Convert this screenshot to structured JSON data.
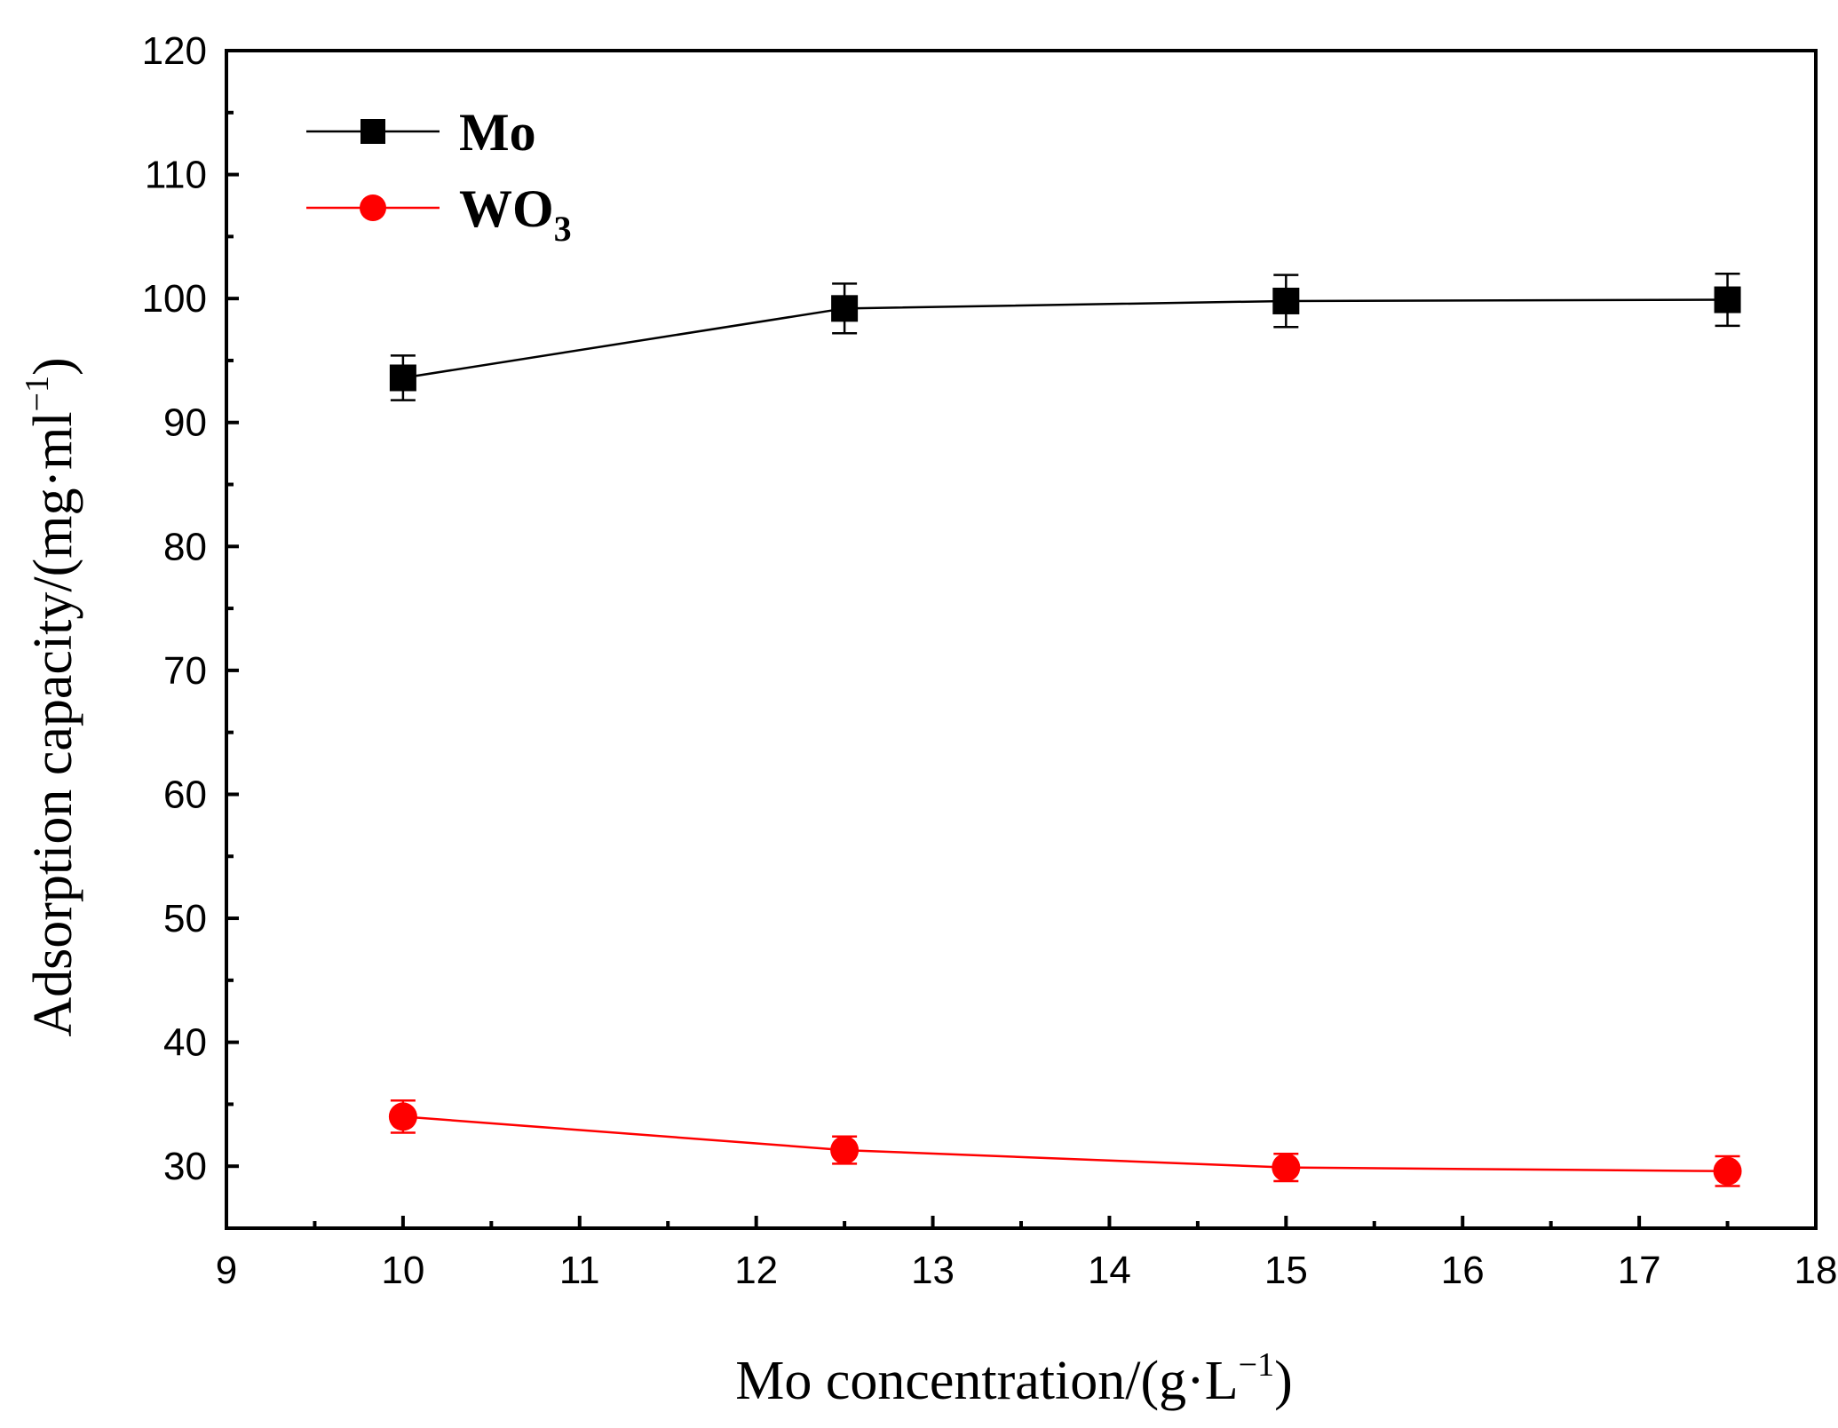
{
  "chart_data": {
    "type": "line",
    "title": "",
    "xlabel": "Mo concentration/(g·L",
    "xlabel_sup": "−1",
    "xlabel_close": ")",
    "ylabel": "Adsorption capacity/(mg·ml",
    "ylabel_sup": "−1",
    "ylabel_close": ")",
    "xlim": [
      9,
      18
    ],
    "ylim": [
      25,
      120
    ],
    "x_ticks": [
      9,
      10,
      11,
      12,
      13,
      14,
      15,
      16,
      17,
      18
    ],
    "y_ticks": [
      30,
      40,
      50,
      60,
      70,
      80,
      90,
      100,
      110,
      120
    ],
    "x_tick_labels": [
      "9",
      "10",
      "11",
      "12",
      "13",
      "14",
      "15",
      "16",
      "17",
      "18"
    ],
    "y_tick_labels": [
      "30",
      "40",
      "50",
      "60",
      "70",
      "80",
      "90",
      "100",
      "110",
      "120"
    ],
    "legend_position": "top-left",
    "series": [
      {
        "name": "Mo",
        "legend_label": "Mo",
        "legend_sub": "",
        "marker": "square",
        "color": "#000000",
        "x": [
          10,
          12.5,
          15,
          17.5
        ],
        "y": [
          93.6,
          99.2,
          99.8,
          99.9
        ],
        "error": [
          1.8,
          2.0,
          2.1,
          2.1
        ]
      },
      {
        "name": "WO3",
        "legend_label": "WO",
        "legend_sub": "3",
        "marker": "circle",
        "color": "#ff0000",
        "x": [
          10,
          12.5,
          15,
          17.5
        ],
        "y": [
          34.0,
          31.3,
          29.9,
          29.6
        ],
        "error": [
          1.3,
          1.1,
          1.1,
          1.2
        ]
      }
    ]
  }
}
